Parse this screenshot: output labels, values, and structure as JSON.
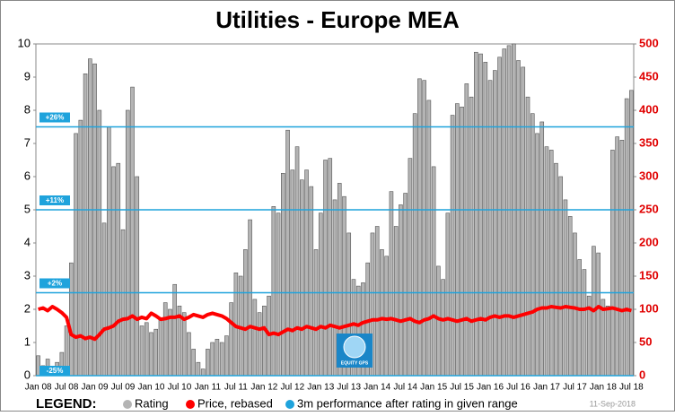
{
  "chart_data": {
    "type": "bar_line",
    "title": "Utilities - Europe MEA",
    "categories": [
      "Jan 08",
      null,
      null,
      null,
      null,
      null,
      "Jul 08",
      null,
      null,
      null,
      null,
      null,
      "Jan 09",
      null,
      null,
      null,
      null,
      null,
      "Jul 09",
      null,
      null,
      null,
      null,
      null,
      "Jan 10",
      null,
      null,
      null,
      null,
      null,
      "Jul 10",
      null,
      null,
      null,
      null,
      null,
      "Jan 11",
      null,
      null,
      null,
      null,
      null,
      "Jul 11",
      null,
      null,
      null,
      null,
      null,
      "Jan 12",
      null,
      null,
      null,
      null,
      null,
      "Jul 12",
      null,
      null,
      null,
      null,
      null,
      "Jan 13",
      null,
      null,
      null,
      null,
      null,
      "Jul 13",
      null,
      null,
      null,
      null,
      null,
      "Jan 14",
      null,
      null,
      null,
      null,
      null,
      "Jul 14",
      null,
      null,
      null,
      null,
      null,
      "Jan 15",
      null,
      null,
      null,
      null,
      null,
      "Jul 15",
      null,
      null,
      null,
      null,
      null,
      "Jan 16",
      null,
      null,
      null,
      null,
      null,
      "Jul 16",
      null,
      null,
      null,
      null,
      null,
      "Jan 17",
      null,
      null,
      null,
      null,
      null,
      "Jul 17",
      null,
      null,
      null,
      null,
      null,
      "Jan 18",
      null,
      null,
      null,
      null,
      null,
      "Jul 18"
    ],
    "series": [
      {
        "name": "Rating",
        "color": "#b4b4b4",
        "kind": "bar",
        "values": [
          0.6,
          0.3,
          0.5,
          0.2,
          0.4,
          0.7,
          1.5,
          3.4,
          7.3,
          7.7,
          9.1,
          9.55,
          9.4,
          8.0,
          4.6,
          7.5,
          6.3,
          6.4,
          4.4,
          8.0,
          8.7,
          6.0,
          1.5,
          1.6,
          1.3,
          1.4,
          1.7,
          2.2,
          2.0,
          2.75,
          2.1,
          1.9,
          1.3,
          0.8,
          0.4,
          0.2,
          0.8,
          1.0,
          1.1,
          1.0,
          1.2,
          2.2,
          3.1,
          3.0,
          3.8,
          4.7,
          2.3,
          1.9,
          2.1,
          2.4,
          5.1,
          4.9,
          6.1,
          7.4,
          6.2,
          6.9,
          5.9,
          6.2,
          5.7,
          3.8,
          4.9,
          6.5,
          6.55,
          5.3,
          5.8,
          5.4,
          4.3,
          2.9,
          2.7,
          2.8,
          3.4,
          4.3,
          4.5,
          3.8,
          3.6,
          5.55,
          4.5,
          5.15,
          5.5,
          6.55,
          7.9,
          8.95,
          8.9,
          8.3,
          6.3,
          3.3,
          2.9,
          4.9,
          7.85,
          8.2,
          8.1,
          8.8,
          8.4,
          9.75,
          9.7,
          9.45,
          8.9,
          9.2,
          9.6,
          9.85,
          9.95,
          10.0,
          9.5,
          9.3,
          8.4,
          7.9,
          7.3,
          7.65,
          6.9,
          6.8,
          6.4,
          6.0,
          5.3,
          4.8,
          4.3,
          3.5,
          3.2,
          2.4,
          3.9,
          3.7,
          2.3,
          2.1,
          6.8,
          7.2,
          7.1,
          8.35,
          8.6
        ]
      },
      {
        "name": "Price, rebased",
        "color": "#ff0000",
        "kind": "line",
        "axis": "y2",
        "values": [
          100,
          102,
          98,
          104,
          100,
          95,
          88,
          62,
          58,
          60,
          56,
          58,
          55,
          62,
          70,
          72,
          75,
          82,
          85,
          86,
          90,
          85,
          88,
          86,
          94,
          90,
          85,
          86,
          88,
          88,
          90,
          85,
          88,
          92,
          90,
          88,
          92,
          94,
          92,
          90,
          86,
          80,
          74,
          72,
          70,
          74,
          72,
          70,
          72,
          62,
          64,
          62,
          66,
          70,
          68,
          72,
          70,
          74,
          72,
          70,
          74,
          72,
          76,
          74,
          72,
          74,
          76,
          78,
          76,
          80,
          82,
          84,
          84,
          86,
          85,
          86,
          84,
          82,
          84,
          86,
          82,
          80,
          84,
          86,
          90,
          86,
          84,
          86,
          84,
          82,
          84,
          86,
          82,
          84,
          86,
          84,
          88,
          90,
          88,
          90,
          90,
          88,
          90,
          92,
          94,
          96,
          100,
          102,
          102,
          104,
          103,
          102,
          104,
          103,
          102,
          100,
          100,
          102,
          98,
          104,
          100,
          101,
          102,
          100,
          98,
          100,
          98
        ]
      }
    ],
    "ranges": {
      "name": "3m performance after rating in given range",
      "color": "#1fa3dc",
      "lines": [
        {
          "value": 7.5,
          "label": "+26%"
        },
        {
          "value": 5,
          "label": "+11%"
        },
        {
          "value": 2.5,
          "label": "+2%"
        },
        {
          "value": 0,
          "label": "-25%"
        }
      ]
    },
    "ylim": [
      0,
      10
    ],
    "yticks": [
      0,
      1,
      2,
      3,
      4,
      5,
      6,
      7,
      8,
      9,
      10
    ],
    "y2lim": [
      0,
      500
    ],
    "y2ticks": [
      0,
      50,
      100,
      150,
      200,
      250,
      300,
      350,
      400,
      450,
      500
    ],
    "legend_title": "LEGEND:",
    "logo_text": "EQUITY GPS",
    "date": "11-Sep-2018"
  }
}
